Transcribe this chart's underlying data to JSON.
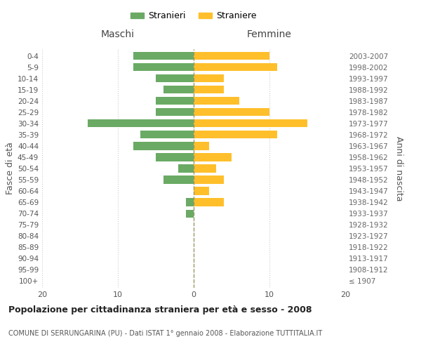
{
  "age_groups": [
    "100+",
    "95-99",
    "90-94",
    "85-89",
    "80-84",
    "75-79",
    "70-74",
    "65-69",
    "60-64",
    "55-59",
    "50-54",
    "45-49",
    "40-44",
    "35-39",
    "30-34",
    "25-29",
    "20-24",
    "15-19",
    "10-14",
    "5-9",
    "0-4"
  ],
  "birth_years": [
    "≤ 1907",
    "1908-1912",
    "1913-1917",
    "1918-1922",
    "1923-1927",
    "1928-1932",
    "1933-1937",
    "1938-1942",
    "1943-1947",
    "1948-1952",
    "1953-1957",
    "1958-1962",
    "1963-1967",
    "1968-1972",
    "1973-1977",
    "1978-1982",
    "1983-1987",
    "1988-1992",
    "1993-1997",
    "1998-2002",
    "2003-2007"
  ],
  "maschi": [
    0,
    0,
    0,
    0,
    0,
    0,
    1,
    1,
    0,
    4,
    2,
    5,
    8,
    7,
    14,
    5,
    5,
    4,
    5,
    8,
    8
  ],
  "femmine": [
    0,
    0,
    0,
    0,
    0,
    0,
    0,
    4,
    2,
    4,
    3,
    5,
    2,
    11,
    15,
    10,
    6,
    4,
    4,
    11,
    10
  ],
  "color_maschi": "#6aaa64",
  "color_femmine": "#ffbf2b",
  "center_line_color": "#999966",
  "title": "Popolazione per cittadinanza straniera per età e sesso - 2008",
  "subtitle": "COMUNE DI SERRUNGARINA (PU) - Dati ISTAT 1° gennaio 2008 - Elaborazione TUTTITALIA.IT",
  "xlabel_left": "Maschi",
  "xlabel_right": "Femmine",
  "ylabel_left": "Fasce di età",
  "ylabel_right": "Anni di nascita",
  "legend_maschi": "Stranieri",
  "legend_femmine": "Straniere",
  "xlim": 20,
  "background_color": "#ffffff",
  "grid_color": "#cccccc"
}
